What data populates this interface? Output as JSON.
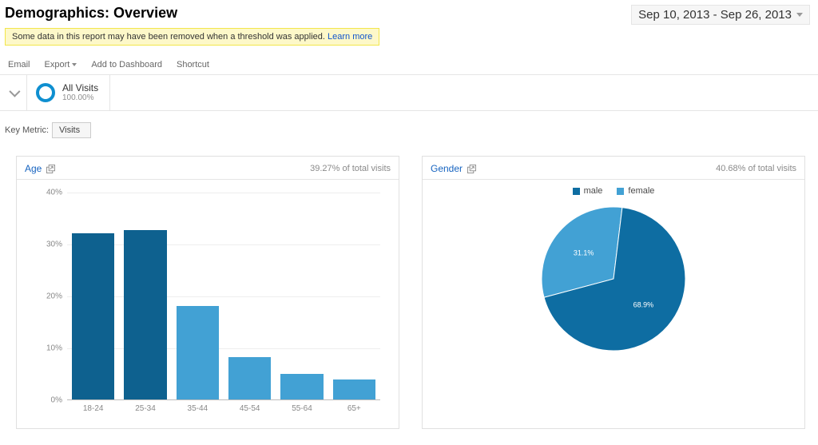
{
  "header": {
    "title": "Demographics: Overview",
    "date_range": "Sep 10, 2013 - Sep 26, 2013"
  },
  "notice": {
    "text": "Some data in this report may have been removed when a threshold was applied. ",
    "link": "Learn more"
  },
  "actions": {
    "email": "Email",
    "export": "Export",
    "add_to_dashboard": "Add to Dashboard",
    "shortcut": "Shortcut"
  },
  "segment": {
    "name": "All Visits",
    "percent": "100.00%",
    "ring_color": "#0f8fd0"
  },
  "key_metric": {
    "label": "Key Metric:",
    "selected": "Visits"
  },
  "colors": {
    "bar_dark": "#0e618f",
    "bar_light": "#42a1d4",
    "pie_major": "#0e6da2",
    "pie_minor": "#42a1d4"
  },
  "age_card": {
    "title": "Age",
    "subtitle": "39.27% of total visits",
    "type": "bar",
    "ylim_max": 40,
    "ytick_step": 10,
    "categories": [
      "18-24",
      "25-34",
      "35-44",
      "45-54",
      "55-64",
      "65+"
    ],
    "values": [
      32.2,
      32.8,
      18.0,
      8.2,
      5.0,
      3.8
    ],
    "highlight_index": [
      0,
      1
    ]
  },
  "gender_card": {
    "title": "Gender",
    "subtitle": "40.68% of total visits",
    "type": "pie",
    "series": [
      {
        "label": "male",
        "value": 68.9,
        "text": "68.9%"
      },
      {
        "label": "female",
        "value": 31.1,
        "text": "31.1%"
      }
    ]
  }
}
